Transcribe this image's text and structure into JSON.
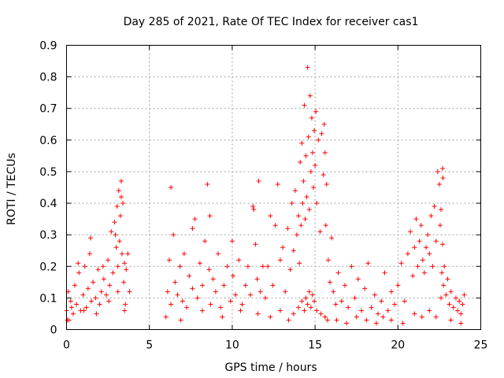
{
  "chart_data": {
    "type": "scatter",
    "title": "Day 285 of 2021, Rate Of TEC Index for receiver cas1",
    "xlabel": "GPS time / hours",
    "ylabel": "ROTI / TECUs",
    "xlim": [
      0,
      25
    ],
    "ylim": [
      0,
      0.9
    ],
    "x_ticks": [
      "0",
      "5",
      "10",
      "15",
      "20",
      "25"
    ],
    "y_ticks": [
      "0",
      "0.1",
      "0.2",
      "0.3",
      "0.4",
      "0.5",
      "0.6",
      "0.7",
      "0.8",
      "0.9"
    ],
    "grid": true,
    "marker": "+",
    "color": "#ff0000",
    "series": [
      {
        "x": [
          0.0,
          0.1,
          0.15,
          0.25,
          0.4,
          0.5,
          0.6,
          0.75,
          0.85,
          1.0,
          1.1,
          1.2,
          1.3,
          1.4,
          1.5,
          1.6,
          1.75,
          1.9,
          2.0,
          2.1,
          2.25,
          2.4,
          2.5,
          2.6,
          2.7,
          2.8,
          2.9,
          3.0,
          3.05,
          3.1,
          3.15,
          3.2,
          3.25,
          3.3,
          3.35,
          3.4,
          3.45,
          3.5,
          3.55,
          3.6,
          3.7,
          3.8,
          0.05,
          0.3,
          0.7,
          1.05,
          1.45,
          1.8,
          2.2,
          2.55,
          2.95,
          3.1,
          3.3,
          3.5,
          6.0,
          6.1,
          6.2,
          6.3,
          6.45,
          6.55,
          6.7,
          6.85,
          7.0,
          7.1,
          7.25,
          7.4,
          7.6,
          7.75,
          7.9,
          8.05,
          8.2,
          8.35,
          8.5,
          8.6,
          8.7,
          8.85,
          9.0,
          9.15,
          9.3,
          9.5,
          9.7,
          9.9,
          10.05,
          10.2,
          10.4,
          10.6,
          10.8,
          10.95,
          11.1,
          11.25,
          11.4,
          11.5,
          11.6,
          11.7,
          11.85,
          6.3,
          6.9,
          7.6,
          8.2,
          8.65,
          9.4,
          10.0,
          10.5,
          11.3,
          11.55,
          12.0,
          12.15,
          12.3,
          12.45,
          12.6,
          12.75,
          12.9,
          13.05,
          13.2,
          13.35,
          13.5,
          13.6,
          13.7,
          13.8,
          13.9,
          14.0,
          14.05,
          14.1,
          14.15,
          14.2,
          14.25,
          14.3,
          14.35,
          14.4,
          14.45,
          14.5,
          14.55,
          14.6,
          14.65,
          14.7,
          14.75,
          14.8,
          14.85,
          14.9,
          14.95,
          15.0,
          15.05,
          15.1,
          15.2,
          15.3,
          15.4,
          15.5,
          15.55,
          15.6,
          15.65,
          15.7,
          15.8,
          15.9,
          16.0,
          12.3,
          12.9,
          13.4,
          13.7,
          14.0,
          14.2,
          14.35,
          14.45,
          14.55,
          14.65,
          14.75,
          14.85,
          14.95,
          15.1,
          15.35,
          15.6,
          15.75,
          16.1,
          16.25,
          16.4,
          16.6,
          16.8,
          17.0,
          17.2,
          17.4,
          17.6,
          17.8,
          18.0,
          18.2,
          18.4,
          18.6,
          18.8,
          19.0,
          19.2,
          19.4,
          19.6,
          19.8,
          20.0,
          20.2,
          20.4,
          20.6,
          20.75,
          20.9,
          21.0,
          21.1,
          21.2,
          21.3,
          21.4,
          21.5,
          21.6,
          21.7,
          21.8,
          21.9,
          22.0,
          22.1,
          22.2,
          22.3,
          22.4,
          22.5,
          22.55,
          22.6,
          22.65,
          22.7,
          22.75,
          22.8,
          22.9,
          23.0,
          23.1,
          23.2,
          23.35,
          23.5,
          23.6,
          23.7,
          23.8,
          23.9,
          24.0,
          16.3,
          16.9,
          17.5,
          18.1,
          18.7,
          19.1,
          19.6,
          20.3,
          21.0,
          21.45,
          21.9,
          22.3,
          22.6,
          22.7,
          22.72,
          23.2,
          23.8
        ],
        "y": [
          0.06,
          0.12,
          0.03,
          0.09,
          0.05,
          0.14,
          0.08,
          0.18,
          0.06,
          0.11,
          0.2,
          0.07,
          0.13,
          0.24,
          0.09,
          0.15,
          0.1,
          0.19,
          0.08,
          0.12,
          0.16,
          0.11,
          0.22,
          0.14,
          0.31,
          0.18,
          0.34,
          0.26,
          0.39,
          0.2,
          0.44,
          0.28,
          0.36,
          0.47,
          0.24,
          0.4,
          0.15,
          0.21,
          0.08,
          0.19,
          0.24,
          0.12,
          0.03,
          0.07,
          0.21,
          0.06,
          0.29,
          0.05,
          0.2,
          0.09,
          0.3,
          0.12,
          0.42,
          0.06,
          0.04,
          0.12,
          0.22,
          0.08,
          0.3,
          0.15,
          0.11,
          0.2,
          0.09,
          0.24,
          0.07,
          0.17,
          0.13,
          0.35,
          0.1,
          0.21,
          0.14,
          0.28,
          0.46,
          0.19,
          0.08,
          0.16,
          0.12,
          0.24,
          0.07,
          0.14,
          0.2,
          0.09,
          0.17,
          0.11,
          0.22,
          0.08,
          0.14,
          0.2,
          0.11,
          0.39,
          0.27,
          0.16,
          0.47,
          0.12,
          0.2,
          0.45,
          0.03,
          0.32,
          0.06,
          0.36,
          0.04,
          0.28,
          0.06,
          0.38,
          0.05,
          0.1,
          0.2,
          0.36,
          0.14,
          0.33,
          0.46,
          0.22,
          0.26,
          0.12,
          0.32,
          0.19,
          0.4,
          0.25,
          0.44,
          0.3,
          0.36,
          0.21,
          0.53,
          0.33,
          0.59,
          0.4,
          0.47,
          0.71,
          0.35,
          0.55,
          0.42,
          0.83,
          0.61,
          0.38,
          0.74,
          0.5,
          0.67,
          0.56,
          0.45,
          0.63,
          0.52,
          0.69,
          0.4,
          0.6,
          0.31,
          0.62,
          0.49,
          0.65,
          0.56,
          0.33,
          0.46,
          0.22,
          0.15,
          0.29,
          0.04,
          0.06,
          0.03,
          0.05,
          0.07,
          0.09,
          0.06,
          0.1,
          0.08,
          0.12,
          0.07,
          0.11,
          0.09,
          0.06,
          0.05,
          0.04,
          0.03,
          0.12,
          0.08,
          0.18,
          0.09,
          0.14,
          0.07,
          0.2,
          0.1,
          0.16,
          0.06,
          0.13,
          0.21,
          0.07,
          0.11,
          0.05,
          0.09,
          0.18,
          0.06,
          0.12,
          0.08,
          0.14,
          0.21,
          0.09,
          0.24,
          0.31,
          0.17,
          0.26,
          0.35,
          0.2,
          0.28,
          0.33,
          0.22,
          0.18,
          0.26,
          0.3,
          0.24,
          0.36,
          0.2,
          0.39,
          0.28,
          0.5,
          0.46,
          0.33,
          0.38,
          0.18,
          0.27,
          0.14,
          0.2,
          0.11,
          0.16,
          0.08,
          0.12,
          0.07,
          0.1,
          0.06,
          0.09,
          0.05,
          0.08,
          0.11,
          0.03,
          0.02,
          0.04,
          0.03,
          0.02,
          0.04,
          0.03,
          0.02,
          0.05,
          0.04,
          0.06,
          0.04,
          0.1,
          0.51,
          0.48,
          0.03,
          0.02
        ]
      }
    ]
  }
}
